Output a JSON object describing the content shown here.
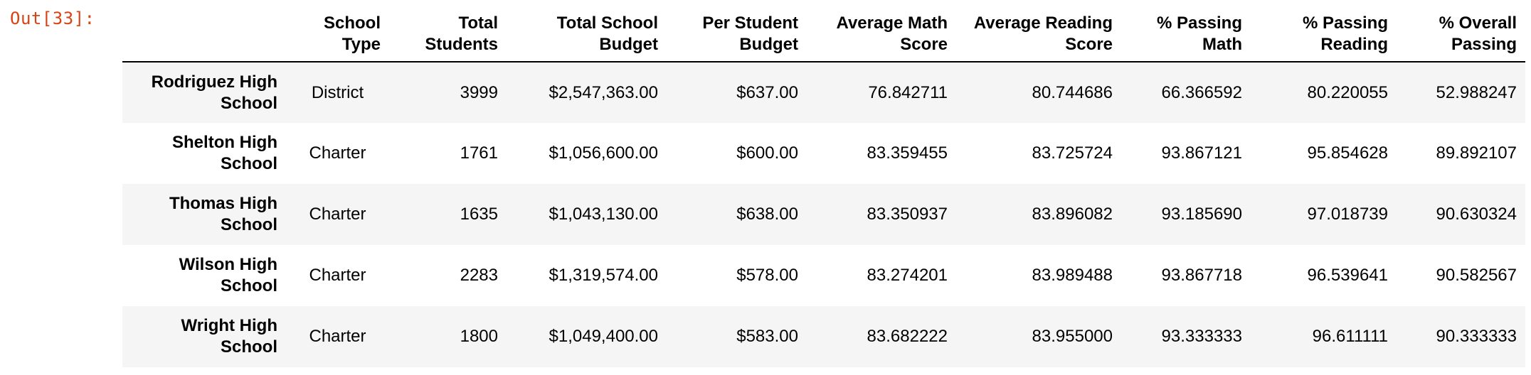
{
  "cell": {
    "prompt": "Out[33]:"
  },
  "table": {
    "columns": [
      "",
      "School Type",
      "Total Students",
      "Total School Budget",
      "Per Student Budget",
      "Average Math Score",
      "Average Reading Score",
      "% Passing Math",
      "% Passing Reading",
      "% Overall Passing"
    ],
    "rows": [
      {
        "index": "Rodriguez High School",
        "values": [
          "District",
          "3999",
          "$2,547,363.00",
          "$637.00",
          "76.842711",
          "80.744686",
          "66.366592",
          "80.220055",
          "52.988247"
        ]
      },
      {
        "index": "Shelton High School",
        "values": [
          "Charter",
          "1761",
          "$1,056,600.00",
          "$600.00",
          "83.359455",
          "83.725724",
          "93.867121",
          "95.854628",
          "89.892107"
        ]
      },
      {
        "index": "Thomas High School",
        "values": [
          "Charter",
          "1635",
          "$1,043,130.00",
          "$638.00",
          "83.350937",
          "83.896082",
          "93.185690",
          "97.018739",
          "90.630324"
        ]
      },
      {
        "index": "Wilson High School",
        "values": [
          "Charter",
          "2283",
          "$1,319,574.00",
          "$578.00",
          "83.274201",
          "83.989488",
          "93.867718",
          "96.539641",
          "90.582567"
        ]
      },
      {
        "index": "Wright High School",
        "values": [
          "Charter",
          "1800",
          "$1,049,400.00",
          "$583.00",
          "83.682222",
          "83.955000",
          "93.333333",
          "96.611111",
          "90.333333"
        ]
      }
    ]
  },
  "colors": {
    "prompt": "#d84315",
    "stripe": "#f5f5f5"
  }
}
